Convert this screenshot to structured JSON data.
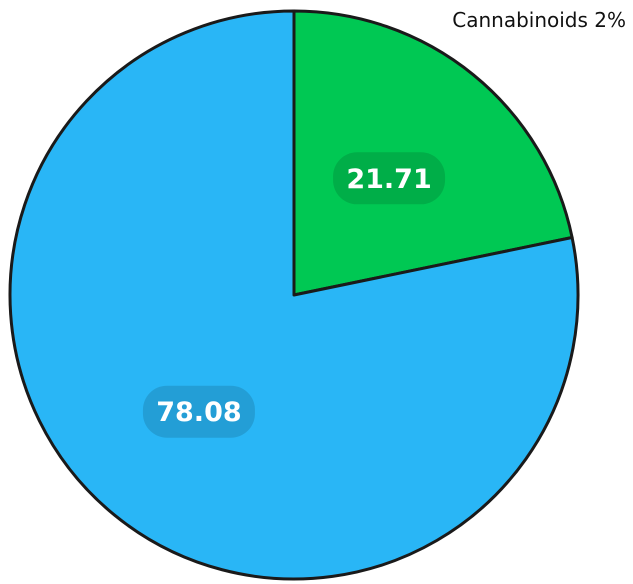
{
  "chart_data": {
    "type": "pie",
    "title": "Cannabinoids 2%",
    "start_angle_deg": 0,
    "direction": "clockwise",
    "slices": [
      {
        "value": 21.71,
        "label": "21.71",
        "color": "#00c853"
      },
      {
        "value": 78.08,
        "label": "78.08",
        "color": "#29b6f6"
      }
    ],
    "legend": "none"
  }
}
